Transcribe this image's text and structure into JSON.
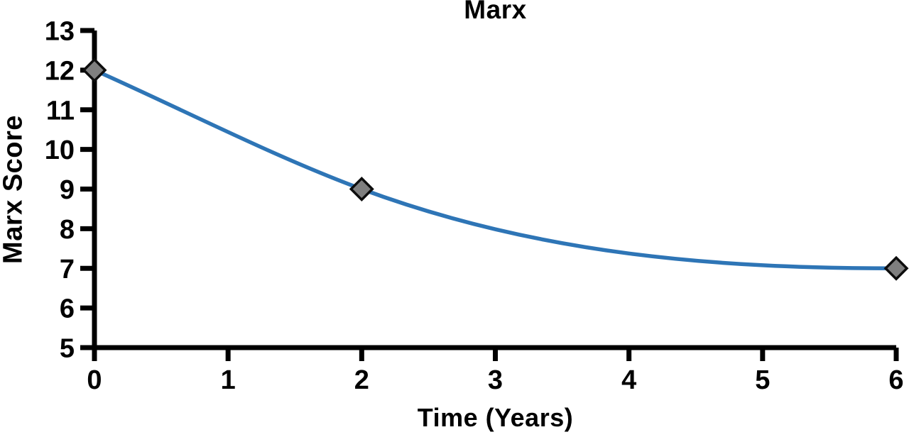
{
  "chart_data": {
    "type": "line",
    "title": "Marx",
    "xlabel": "Time (Years)",
    "ylabel": "Marx Score",
    "series": [
      {
        "name": "Marx Score",
        "x": [
          0,
          2,
          6
        ],
        "y": [
          12,
          9,
          7
        ]
      }
    ],
    "xlim": [
      0,
      6
    ],
    "ylim": [
      5,
      13
    ],
    "xticks": [
      0,
      1,
      2,
      3,
      4,
      5,
      6
    ],
    "yticks": [
      5,
      6,
      7,
      8,
      9,
      10,
      11,
      12,
      13
    ],
    "grid": false,
    "legend": false,
    "curve": "smooth",
    "end_tangent_flat": true,
    "marker": "diamond",
    "colors": {
      "line": "#2E75B6",
      "marker_fill": "#7F7F7F",
      "marker_stroke": "#0D0D0D",
      "axis": "#000000",
      "text": "#000000"
    }
  }
}
